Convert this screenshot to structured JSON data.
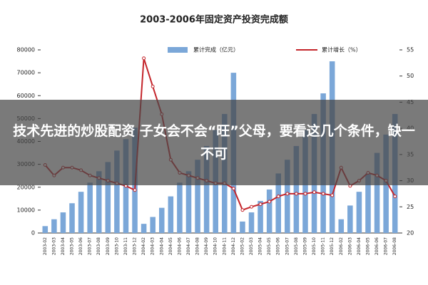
{
  "chart_data": {
    "type": "bar_line",
    "title": "2003-2006年固定资产投资完成额",
    "overlay_caption": "技术先进的炒股配资 子女会不会“旺”父母，要看这几个条件，缺一不可",
    "categories": [
      "2003-02",
      "2003-03",
      "2003-04",
      "2003-05",
      "2003-06",
      "2003-07",
      "2003-08",
      "2003-09",
      "2003-10",
      "2003-11",
      "2003-12",
      "2004-02",
      "2004-03",
      "2004-04",
      "2004-05",
      "2004-06",
      "2004-07",
      "2004-08",
      "2004-09",
      "2004-10",
      "2004-11",
      "2004-12",
      "2005-02",
      "2005-03",
      "2005-04",
      "2005-05",
      "2005-06",
      "2005-07",
      "2005-08",
      "2005-09",
      "2005-10",
      "2005-11",
      "2005-12",
      "2006-02",
      "2006-03",
      "2006-04",
      "2006-05",
      "2006-06",
      "2006-07",
      "2006-08"
    ],
    "series": [
      {
        "name": "累计完成（亿元）",
        "color": "#7ba7d8",
        "axis": "y",
        "values": [
          3000,
          6000,
          9000,
          13000,
          18000,
          22000,
          27000,
          31000,
          36000,
          41000,
          46000,
          4000,
          7000,
          11000,
          16000,
          22000,
          27000,
          32000,
          38000,
          45000,
          52000,
          70000,
          5000,
          9000,
          14000,
          19000,
          26000,
          32000,
          38000,
          45000,
          52000,
          61000,
          75000,
          6000,
          12000,
          18000,
          26000,
          35000,
          43000,
          52000
        ]
      },
      {
        "name": "累计增长（%）",
        "color": "#c4252b",
        "axis": "y2",
        "values": [
          33,
          31,
          32.5,
          32.5,
          32,
          31,
          30.5,
          30,
          29.5,
          29,
          28.2,
          53.4,
          48,
          42.7,
          34,
          31.5,
          31,
          30.5,
          30,
          29.5,
          29.5,
          28.5,
          24.4,
          25,
          25.5,
          26,
          27,
          27.5,
          27.5,
          27.5,
          27.8,
          27.5,
          27.2,
          32.5,
          29,
          30,
          31.5,
          31,
          30,
          27
        ]
      }
    ],
    "ylim": [
      0,
      80000
    ],
    "yticks": [
      0,
      10000,
      20000,
      30000,
      40000,
      50000,
      60000,
      70000,
      80000
    ],
    "y2lim": [
      20,
      55
    ],
    "y2ticks": [
      20,
      25,
      30,
      35,
      40,
      45,
      50,
      55
    ]
  }
}
